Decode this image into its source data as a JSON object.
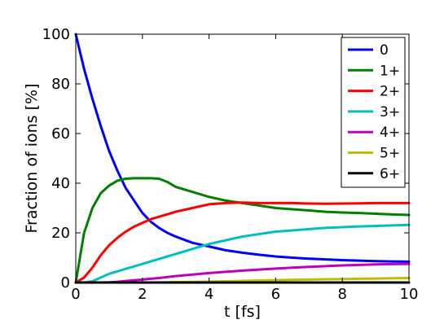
{
  "chart_data": {
    "type": "line",
    "title": "",
    "xlabel": "t [fs]",
    "ylabel": "Fraction of ions [%]",
    "xlim": [
      0,
      10
    ],
    "ylim": [
      0,
      100
    ],
    "xticks": [
      "0",
      "2",
      "4",
      "6",
      "8",
      "10"
    ],
    "yticks": [
      "0",
      "20",
      "40",
      "60",
      "80",
      "100"
    ],
    "grid": false,
    "legend": {
      "position": "top-right"
    },
    "x": [
      0,
      0.25,
      0.5,
      0.75,
      1,
      1.25,
      1.5,
      1.75,
      2,
      2.25,
      2.5,
      2.75,
      3,
      3.5,
      4,
      4.5,
      5,
      5.5,
      6,
      6.5,
      7,
      7.5,
      8,
      8.5,
      9,
      9.5,
      10
    ],
    "series": [
      {
        "name": "0",
        "color": "#0000ff",
        "values": [
          100,
          86,
          74,
          63,
          53,
          45,
          38,
          33,
          28,
          24.5,
          22,
          20,
          18.5,
          16,
          14.5,
          13,
          12,
          11.2,
          10.5,
          10,
          9.6,
          9.3,
          9,
          8.8,
          8.6,
          8.5,
          8.4
        ]
      },
      {
        "name": "1+",
        "color": "#008000",
        "values": [
          0,
          20,
          30,
          36,
          39,
          41,
          41.8,
          42,
          42,
          42,
          41.8,
          40.5,
          38.5,
          36.5,
          34.5,
          33,
          32,
          31,
          30,
          29.5,
          29,
          28.5,
          28.2,
          28,
          27.7,
          27.4,
          27.2
        ]
      },
      {
        "name": "2+",
        "color": "#ff0000",
        "values": [
          0,
          2,
          6,
          11,
          15,
          18,
          20.5,
          22.5,
          24,
          25.5,
          26.5,
          27.5,
          28.5,
          30,
          31.5,
          32,
          32.2,
          32,
          32,
          32,
          31.8,
          31.7,
          31.8,
          31.9,
          32,
          32,
          32
        ]
      },
      {
        "name": "3+",
        "color": "#00bfbf",
        "values": [
          0,
          0,
          0.5,
          2,
          3.5,
          4.5,
          5.5,
          6.5,
          7.5,
          8.5,
          9.5,
          10.5,
          11.5,
          13.5,
          15.5,
          17,
          18.5,
          19.5,
          20.5,
          21,
          21.5,
          22,
          22.3,
          22.6,
          22.8,
          23,
          23.2
        ]
      },
      {
        "name": "4+",
        "color": "#bf00bf",
        "values": [
          0,
          0,
          0,
          0,
          0.1,
          0.3,
          0.6,
          0.9,
          1.2,
          1.5,
          1.8,
          2.2,
          2.6,
          3.2,
          3.8,
          4.3,
          4.8,
          5.2,
          5.6,
          6,
          6.3,
          6.6,
          6.9,
          7.1,
          7.3,
          7.4,
          7.5
        ]
      },
      {
        "name": "5+",
        "color": "#bfbf00",
        "values": [
          0,
          0,
          0,
          0,
          0,
          0,
          0,
          0,
          0,
          0,
          0.05,
          0.1,
          0.15,
          0.25,
          0.35,
          0.5,
          0.65,
          0.8,
          0.95,
          1.1,
          1.2,
          1.3,
          1.4,
          1.5,
          1.6,
          1.7,
          1.8
        ]
      },
      {
        "name": "6+",
        "color": "#000000",
        "values": [
          0,
          0,
          0,
          0,
          0,
          0,
          0,
          0,
          0,
          0,
          0,
          0,
          0,
          0,
          0,
          0,
          0,
          0,
          0,
          0,
          0,
          0,
          0,
          0,
          0,
          0,
          0
        ]
      }
    ]
  }
}
